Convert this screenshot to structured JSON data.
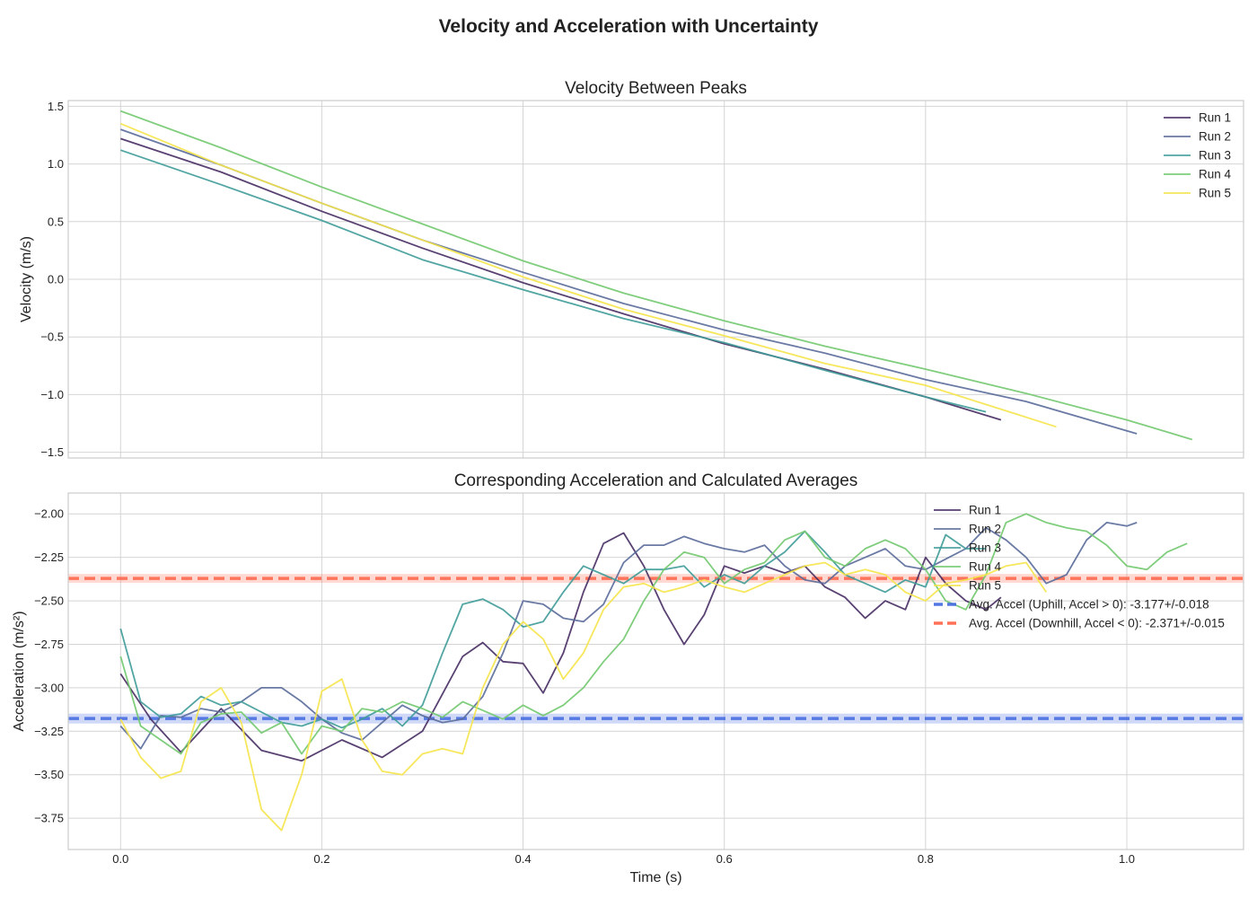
{
  "figure": {
    "title": "Velocity and Acceleration with Uncertainty"
  },
  "chart_data": [
    {
      "type": "line",
      "title": "Velocity Between Peaks",
      "xlabel": "",
      "ylabel": "Velocity (m/s)",
      "xlim": [
        -0.052,
        1.116
      ],
      "ylim": [
        -1.55,
        1.55
      ],
      "xticks": [
        0.0,
        0.2,
        0.4,
        0.6,
        0.8,
        1.0
      ],
      "xtick_labels": [
        "",
        "",
        "",
        "",
        "",
        ""
      ],
      "yticks": [
        -1.5,
        -1.0,
        -0.5,
        0.0,
        0.5,
        1.0,
        1.5
      ],
      "ytick_labels": [
        "−1.5",
        "−1.0",
        "−0.5",
        "0.0",
        "0.5",
        "1.0",
        "1.5"
      ],
      "grid": true,
      "legend_position": "top-right",
      "series": [
        {
          "name": "Run 1",
          "color": "#472d63",
          "x": [
            0.0,
            0.1,
            0.2,
            0.3,
            0.4,
            0.5,
            0.6,
            0.7,
            0.8,
            0.875
          ],
          "y": [
            1.22,
            0.93,
            0.59,
            0.27,
            -0.03,
            -0.3,
            -0.56,
            -0.78,
            -1.02,
            -1.22
          ]
        },
        {
          "name": "Run 2",
          "color": "#5a6b9a",
          "x": [
            0.0,
            0.1,
            0.2,
            0.3,
            0.4,
            0.5,
            0.6,
            0.7,
            0.8,
            0.9,
            1.01
          ],
          "y": [
            1.3,
            0.99,
            0.66,
            0.34,
            0.06,
            -0.21,
            -0.44,
            -0.64,
            -0.87,
            -1.06,
            -1.34
          ]
        },
        {
          "name": "Run 3",
          "color": "#3e9b98",
          "x": [
            0.0,
            0.1,
            0.2,
            0.3,
            0.4,
            0.5,
            0.6,
            0.7,
            0.8,
            0.86
          ],
          "y": [
            1.12,
            0.82,
            0.51,
            0.17,
            -0.09,
            -0.34,
            -0.55,
            -0.79,
            -1.02,
            -1.15
          ]
        },
        {
          "name": "Run 4",
          "color": "#72c96f",
          "x": [
            0.0,
            0.1,
            0.2,
            0.3,
            0.4,
            0.5,
            0.6,
            0.7,
            0.8,
            0.9,
            1.0,
            1.065
          ],
          "y": [
            1.46,
            1.14,
            0.8,
            0.48,
            0.16,
            -0.12,
            -0.36,
            -0.58,
            -0.78,
            -0.99,
            -1.22,
            -1.39
          ]
        },
        {
          "name": "Run 5",
          "color": "#f5e44a",
          "x": [
            0.0,
            0.1,
            0.2,
            0.3,
            0.4,
            0.5,
            0.6,
            0.7,
            0.8,
            0.93
          ],
          "y": [
            1.35,
            0.99,
            0.66,
            0.34,
            0.02,
            -0.26,
            -0.49,
            -0.73,
            -0.92,
            -1.28
          ]
        }
      ]
    },
    {
      "type": "line",
      "title": "Corresponding Acceleration and Calculated Averages",
      "xlabel": "Time (s)",
      "ylabel": "Acceleration (m/s²)",
      "xlim": [
        -0.052,
        1.116
      ],
      "ylim": [
        -3.93,
        -1.88
      ],
      "xticks": [
        0.0,
        0.2,
        0.4,
        0.6,
        0.8,
        1.0
      ],
      "xtick_labels": [
        "0.0",
        "0.2",
        "0.4",
        "0.6",
        "0.8",
        "1.0"
      ],
      "yticks": [
        -3.75,
        -3.5,
        -3.25,
        -3.0,
        -2.75,
        -2.5,
        -2.25,
        -2.0
      ],
      "ytick_labels": [
        "−3.75",
        "−3.50",
        "−3.25",
        "−3.00",
        "−2.75",
        "−2.50",
        "−2.25",
        "−2.00"
      ],
      "grid": true,
      "legend_position": "top-right",
      "series": [
        {
          "name": "Run 1",
          "color": "#472d63",
          "x": [
            0.0,
            0.03,
            0.06,
            0.1,
            0.14,
            0.18,
            0.22,
            0.26,
            0.3,
            0.34,
            0.36,
            0.38,
            0.4,
            0.42,
            0.44,
            0.46,
            0.48,
            0.5,
            0.52,
            0.54,
            0.56,
            0.58,
            0.6,
            0.62,
            0.64,
            0.66,
            0.68,
            0.7,
            0.72,
            0.74,
            0.76,
            0.78,
            0.8,
            0.82,
            0.84,
            0.86,
            0.875
          ],
          "y": [
            -2.92,
            -3.18,
            -3.37,
            -3.12,
            -3.36,
            -3.42,
            -3.3,
            -3.4,
            -3.25,
            -2.82,
            -2.74,
            -2.85,
            -2.86,
            -3.03,
            -2.8,
            -2.45,
            -2.17,
            -2.11,
            -2.3,
            -2.55,
            -2.75,
            -2.58,
            -2.3,
            -2.34,
            -2.3,
            -2.34,
            -2.3,
            -2.42,
            -2.48,
            -2.6,
            -2.5,
            -2.55,
            -2.25,
            -2.4,
            -2.5,
            -2.55,
            -2.48
          ]
        },
        {
          "name": "Run 2",
          "color": "#5a6b9a",
          "x": [
            0.0,
            0.02,
            0.04,
            0.06,
            0.08,
            0.1,
            0.12,
            0.14,
            0.16,
            0.18,
            0.2,
            0.22,
            0.24,
            0.26,
            0.28,
            0.3,
            0.32,
            0.34,
            0.36,
            0.38,
            0.4,
            0.42,
            0.44,
            0.46,
            0.48,
            0.5,
            0.52,
            0.54,
            0.56,
            0.58,
            0.6,
            0.62,
            0.64,
            0.66,
            0.68,
            0.7,
            0.72,
            0.74,
            0.76,
            0.78,
            0.8,
            0.82,
            0.84,
            0.86,
            0.88,
            0.9,
            0.92,
            0.94,
            0.96,
            0.98,
            1.0,
            1.01
          ],
          "y": [
            -3.22,
            -3.35,
            -3.16,
            -3.17,
            -3.12,
            -3.14,
            -3.08,
            -3.0,
            -3.0,
            -3.08,
            -3.18,
            -3.26,
            -3.3,
            -3.2,
            -3.1,
            -3.16,
            -3.2,
            -3.18,
            -3.05,
            -2.8,
            -2.5,
            -2.52,
            -2.6,
            -2.62,
            -2.52,
            -2.28,
            -2.18,
            -2.18,
            -2.13,
            -2.17,
            -2.2,
            -2.22,
            -2.18,
            -2.3,
            -2.38,
            -2.4,
            -2.3,
            -2.25,
            -2.2,
            -2.3,
            -2.32,
            -2.26,
            -2.2,
            -2.08,
            -2.15,
            -2.25,
            -2.4,
            -2.35,
            -2.15,
            -2.05,
            -2.07,
            -2.05
          ]
        },
        {
          "name": "Run 3",
          "color": "#3e9b98",
          "x": [
            0.0,
            0.02,
            0.04,
            0.06,
            0.08,
            0.1,
            0.12,
            0.14,
            0.16,
            0.18,
            0.2,
            0.22,
            0.24,
            0.26,
            0.28,
            0.3,
            0.32,
            0.34,
            0.36,
            0.38,
            0.4,
            0.42,
            0.44,
            0.46,
            0.48,
            0.5,
            0.52,
            0.54,
            0.56,
            0.58,
            0.6,
            0.62,
            0.64,
            0.66,
            0.68,
            0.7,
            0.72,
            0.74,
            0.76,
            0.78,
            0.8,
            0.82,
            0.84,
            0.86
          ],
          "y": [
            -2.66,
            -3.08,
            -3.17,
            -3.15,
            -3.05,
            -3.1,
            -3.08,
            -3.14,
            -3.2,
            -3.22,
            -3.18,
            -3.23,
            -3.18,
            -3.12,
            -3.22,
            -3.1,
            -2.8,
            -2.52,
            -2.49,
            -2.55,
            -2.65,
            -2.62,
            -2.45,
            -2.3,
            -2.35,
            -2.4,
            -2.32,
            -2.32,
            -2.3,
            -2.42,
            -2.35,
            -2.4,
            -2.3,
            -2.22,
            -2.1,
            -2.22,
            -2.35,
            -2.4,
            -2.45,
            -2.38,
            -2.42,
            -2.12,
            -2.2,
            -2.2
          ]
        },
        {
          "name": "Run 4",
          "color": "#72c96f",
          "x": [
            0.0,
            0.02,
            0.04,
            0.06,
            0.08,
            0.1,
            0.12,
            0.14,
            0.16,
            0.18,
            0.2,
            0.22,
            0.24,
            0.26,
            0.28,
            0.3,
            0.32,
            0.34,
            0.36,
            0.38,
            0.4,
            0.42,
            0.44,
            0.46,
            0.48,
            0.5,
            0.52,
            0.54,
            0.56,
            0.58,
            0.6,
            0.62,
            0.64,
            0.66,
            0.68,
            0.7,
            0.72,
            0.74,
            0.76,
            0.78,
            0.8,
            0.82,
            0.84,
            0.86,
            0.88,
            0.9,
            0.92,
            0.94,
            0.96,
            0.98,
            1.0,
            1.02,
            1.04,
            1.06
          ],
          "y": [
            -2.82,
            -3.22,
            -3.3,
            -3.38,
            -3.2,
            -3.15,
            -3.14,
            -3.26,
            -3.2,
            -3.38,
            -3.22,
            -3.25,
            -3.12,
            -3.14,
            -3.08,
            -3.12,
            -3.17,
            -3.08,
            -3.13,
            -3.18,
            -3.1,
            -3.16,
            -3.1,
            -3.0,
            -2.85,
            -2.72,
            -2.5,
            -2.32,
            -2.22,
            -2.25,
            -2.4,
            -2.32,
            -2.28,
            -2.15,
            -2.1,
            -2.25,
            -2.3,
            -2.2,
            -2.15,
            -2.2,
            -2.32,
            -2.5,
            -2.55,
            -2.35,
            -2.05,
            -2.0,
            -2.05,
            -2.08,
            -2.1,
            -2.18,
            -2.3,
            -2.32,
            -2.22,
            -2.17
          ]
        },
        {
          "name": "Run 5",
          "color": "#f5e44a",
          "x": [
            0.0,
            0.02,
            0.04,
            0.06,
            0.08,
            0.1,
            0.12,
            0.14,
            0.16,
            0.18,
            0.2,
            0.22,
            0.24,
            0.26,
            0.28,
            0.3,
            0.32,
            0.34,
            0.36,
            0.38,
            0.4,
            0.42,
            0.44,
            0.46,
            0.48,
            0.5,
            0.52,
            0.54,
            0.56,
            0.58,
            0.6,
            0.62,
            0.64,
            0.66,
            0.68,
            0.7,
            0.72,
            0.74,
            0.76,
            0.78,
            0.8,
            0.82,
            0.84,
            0.86,
            0.88,
            0.9,
            0.92
          ],
          "y": [
            -3.18,
            -3.4,
            -3.52,
            -3.48,
            -3.08,
            -3.0,
            -3.2,
            -3.7,
            -3.82,
            -3.5,
            -3.02,
            -2.95,
            -3.3,
            -3.48,
            -3.5,
            -3.38,
            -3.35,
            -3.38,
            -3.0,
            -2.75,
            -2.62,
            -2.72,
            -2.95,
            -2.8,
            -2.55,
            -2.42,
            -2.4,
            -2.45,
            -2.42,
            -2.38,
            -2.42,
            -2.45,
            -2.4,
            -2.35,
            -2.3,
            -2.28,
            -2.35,
            -2.32,
            -2.35,
            -2.45,
            -2.5,
            -2.4,
            -2.38,
            -2.35,
            -2.3,
            -2.28,
            -2.45
          ]
        }
      ],
      "reference_lines": [
        {
          "name": "Avg. Accel (Uphill, Accel > 0): -3.177+/-0.018",
          "y": -3.177,
          "uncertainty": 0.018,
          "color": "#4169e1",
          "style": "dashed"
        },
        {
          "name": "Avg. Accel (Downhill, Accel < 0): -2.371+/-0.015",
          "y": -2.371,
          "uncertainty": 0.015,
          "color": "#ff6347",
          "style": "dashed"
        }
      ]
    }
  ]
}
